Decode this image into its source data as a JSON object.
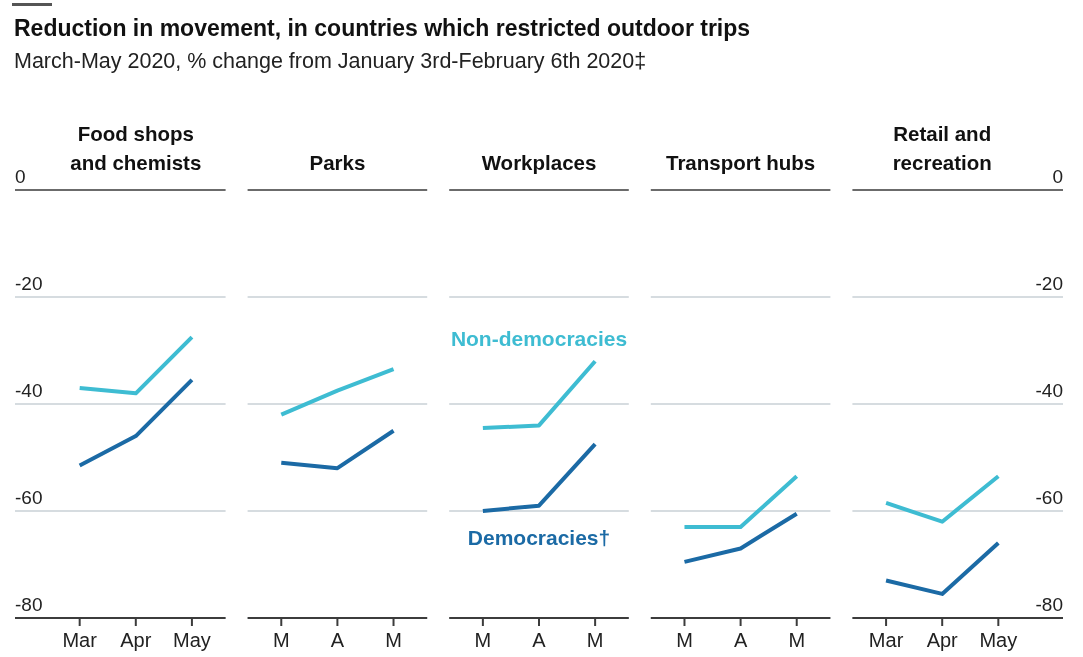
{
  "chart_data": [
    {
      "type": "other",
      "title": "Reduction in movement, in countries which restricted outdoor trips",
      "subtitle": "March-May 2020, % change from January 3rd-February 6th 2020‡"
    },
    {
      "type": "line",
      "title": "Food shops and chemists",
      "categories": [
        "Mar",
        "Apr",
        "May"
      ],
      "series": [
        {
          "color": "#3ebcd2",
          "values": [
            -37,
            -38,
            -27.5
          ]
        },
        {
          "color": "#1b6aa5",
          "values": [
            -51.5,
            -46,
            -35.5
          ]
        }
      ],
      "ylim": [
        -80,
        0
      ],
      "yticks": [
        -80,
        -60,
        -40,
        -20,
        0
      ],
      "grid": "y"
    },
    {
      "type": "line",
      "title": "Parks",
      "categories": [
        "M",
        "A",
        "M"
      ],
      "series": [
        {
          "color": "#3ebcd2",
          "values": [
            -42,
            -37.5,
            -33.5
          ]
        },
        {
          "color": "#1b6aa5",
          "values": [
            -51,
            -52,
            -45
          ]
        }
      ],
      "ylim": [
        -80,
        0
      ],
      "yticks": [
        -80,
        -60,
        -40,
        -20,
        0
      ],
      "grid": "y",
      "tick_labels": "x"
    },
    {
      "type": "line",
      "title": "Workplaces",
      "categories": [
        "M",
        "A",
        "M"
      ],
      "series": [
        {
          "name": "Non-democracies",
          "color": "#3ebcd2",
          "values": [
            -44.5,
            -44,
            -32
          ]
        },
        {
          "name": "Democracies†",
          "color": "#1b6aa5",
          "values": [
            -60,
            -59,
            -47.5
          ]
        }
      ],
      "ylim": [
        -80,
        0
      ],
      "yticks": [
        -80,
        -60,
        -40,
        -20,
        0
      ],
      "grid": "y",
      "tick_labels": "x"
    },
    {
      "type": "line",
      "title": "Transport hubs",
      "categories": [
        "M",
        "A",
        "M"
      ],
      "series": [
        {
          "color": "#3ebcd2",
          "values": [
            -63,
            -63,
            -53.5
          ]
        },
        {
          "color": "#1b6aa5",
          "values": [
            -69.5,
            -67,
            -60.5
          ]
        }
      ],
      "ylim": [
        -80,
        0
      ],
      "yticks": [
        -80,
        -60,
        -40,
        -20,
        0
      ],
      "grid": "y",
      "tick_labels": "x"
    },
    {
      "type": "line",
      "title": "Retail and recreation",
      "categories": [
        "Mar",
        "Apr",
        "May"
      ],
      "series": [
        {
          "color": "#3ebcd2",
          "values": [
            -58.5,
            -62,
            -53.5
          ]
        },
        {
          "color": "#1b6aa5",
          "values": [
            -73,
            -75.5,
            -66
          ]
        }
      ],
      "ylim": [
        -80,
        0
      ],
      "yticks": [
        -80,
        -60,
        -40,
        -20,
        0
      ],
      "grid": "y"
    }
  ]
}
